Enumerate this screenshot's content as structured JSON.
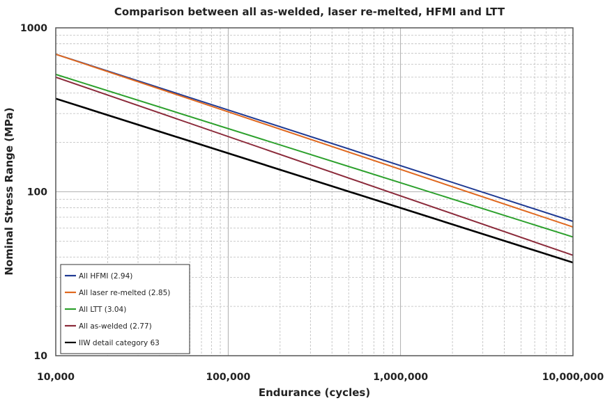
{
  "chart_data": {
    "type": "line",
    "title": "Comparison between all as-welded, laser re-melted, HFMI and LTT",
    "xlabel": "Endurance (cycles)",
    "ylabel": "Nominal Stress Range (MPa)",
    "x_scale": "log",
    "y_scale": "log",
    "xlim": [
      10000,
      10000000
    ],
    "ylim": [
      10,
      1000
    ],
    "x_ticks": [
      10000,
      100000,
      1000000,
      10000000
    ],
    "x_tick_labels": [
      "10,000",
      "100,000",
      "1,000,000",
      "10,000,000"
    ],
    "y_ticks": [
      10,
      100,
      1000
    ],
    "y_tick_labels": [
      "10",
      "100",
      "1000"
    ],
    "grid": true,
    "legend_position": "bottom-left",
    "series": [
      {
        "name": "All HFMI (2.94)",
        "color": "#1f3a93",
        "x": [
          10000,
          10000000
        ],
        "y": [
          690,
          66
        ]
      },
      {
        "name": "All laser re-melted (2.85)",
        "color": "#e0681e",
        "x": [
          10000,
          10000000
        ],
        "y": [
          690,
          61
        ]
      },
      {
        "name": "All LTT (3.04)",
        "color": "#2ca02c",
        "x": [
          10000,
          10000000
        ],
        "y": [
          520,
          53
        ]
      },
      {
        "name": "All as-welded (2.77)",
        "color": "#8b2a3a",
        "x": [
          10000,
          10000000
        ],
        "y": [
          500,
          41
        ]
      },
      {
        "name": "IIW detail category 63",
        "color": "#000000",
        "x": [
          10000,
          10000000
        ],
        "y": [
          370,
          37
        ]
      }
    ]
  }
}
